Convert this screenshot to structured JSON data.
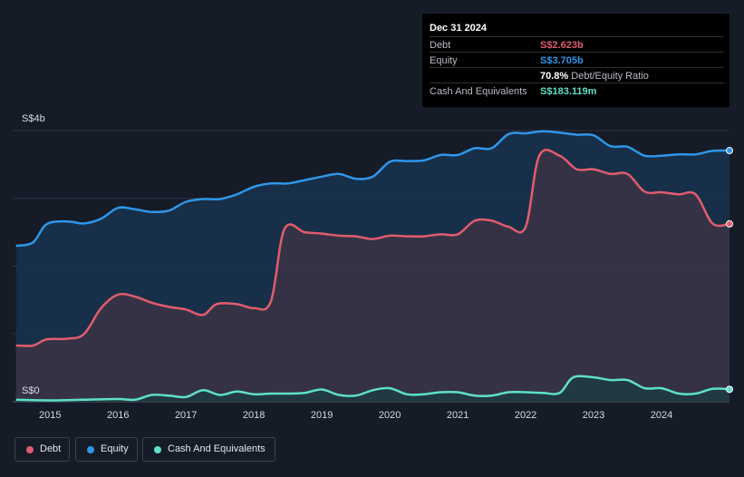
{
  "chart_data": {
    "type": "area",
    "y_ticks": [
      "S$4b",
      "S$0"
    ],
    "ylim": [
      0,
      4
    ],
    "x_ticks": [
      "2015",
      "2016",
      "2017",
      "2018",
      "2019",
      "2020",
      "2021",
      "2022",
      "2023",
      "2024"
    ],
    "xlim": [
      2014.45,
      2025.0
    ],
    "series": [
      {
        "name": "Debt",
        "color": "#e05c6e",
        "fill": "#3a3345",
        "points": [
          [
            2014.5,
            0.83
          ],
          [
            2014.75,
            0.83
          ],
          [
            2014.95,
            0.92
          ],
          [
            2015.25,
            0.93
          ],
          [
            2015.5,
            1.0
          ],
          [
            2015.75,
            1.38
          ],
          [
            2016.0,
            1.58
          ],
          [
            2016.25,
            1.55
          ],
          [
            2016.5,
            1.46
          ],
          [
            2016.75,
            1.4
          ],
          [
            2017.0,
            1.36
          ],
          [
            2017.25,
            1.28
          ],
          [
            2017.45,
            1.44
          ],
          [
            2017.75,
            1.44
          ],
          [
            2018.0,
            1.38
          ],
          [
            2018.25,
            1.48
          ],
          [
            2018.45,
            2.55
          ],
          [
            2018.75,
            2.5
          ],
          [
            2019.0,
            2.48
          ],
          [
            2019.25,
            2.45
          ],
          [
            2019.5,
            2.44
          ],
          [
            2019.75,
            2.4
          ],
          [
            2020.0,
            2.45
          ],
          [
            2020.25,
            2.44
          ],
          [
            2020.5,
            2.44
          ],
          [
            2020.75,
            2.47
          ],
          [
            2021.0,
            2.47
          ],
          [
            2021.25,
            2.67
          ],
          [
            2021.5,
            2.67
          ],
          [
            2021.75,
            2.58
          ],
          [
            2022.0,
            2.58
          ],
          [
            2022.2,
            3.63
          ],
          [
            2022.5,
            3.63
          ],
          [
            2022.75,
            3.43
          ],
          [
            2023.0,
            3.43
          ],
          [
            2023.25,
            3.36
          ],
          [
            2023.5,
            3.36
          ],
          [
            2023.75,
            3.1
          ],
          [
            2024.0,
            3.09
          ],
          [
            2024.25,
            3.06
          ],
          [
            2024.5,
            3.06
          ],
          [
            2024.75,
            2.63
          ],
          [
            2025.0,
            2.623
          ]
        ]
      },
      {
        "name": "Equity",
        "color": "#2f96e8",
        "fill": "#17324d",
        "points": [
          [
            2014.5,
            2.3
          ],
          [
            2014.75,
            2.35
          ],
          [
            2014.95,
            2.62
          ],
          [
            2015.25,
            2.66
          ],
          [
            2015.5,
            2.63
          ],
          [
            2015.75,
            2.7
          ],
          [
            2016.0,
            2.86
          ],
          [
            2016.25,
            2.84
          ],
          [
            2016.5,
            2.8
          ],
          [
            2016.75,
            2.82
          ],
          [
            2017.0,
            2.95
          ],
          [
            2017.25,
            2.99
          ],
          [
            2017.5,
            2.99
          ],
          [
            2017.75,
            3.06
          ],
          [
            2018.0,
            3.17
          ],
          [
            2018.25,
            3.22
          ],
          [
            2018.5,
            3.22
          ],
          [
            2018.75,
            3.27
          ],
          [
            2019.0,
            3.32
          ],
          [
            2019.25,
            3.36
          ],
          [
            2019.5,
            3.29
          ],
          [
            2019.75,
            3.32
          ],
          [
            2020.0,
            3.54
          ],
          [
            2020.25,
            3.55
          ],
          [
            2020.5,
            3.56
          ],
          [
            2020.75,
            3.64
          ],
          [
            2021.0,
            3.64
          ],
          [
            2021.25,
            3.74
          ],
          [
            2021.5,
            3.74
          ],
          [
            2021.75,
            3.95
          ],
          [
            2022.0,
            3.96
          ],
          [
            2022.25,
            3.99
          ],
          [
            2022.5,
            3.97
          ],
          [
            2022.75,
            3.94
          ],
          [
            2023.0,
            3.93
          ],
          [
            2023.25,
            3.77
          ],
          [
            2023.5,
            3.76
          ],
          [
            2023.75,
            3.63
          ],
          [
            2024.0,
            3.63
          ],
          [
            2024.25,
            3.65
          ],
          [
            2024.5,
            3.65
          ],
          [
            2024.75,
            3.7
          ],
          [
            2025.0,
            3.705
          ]
        ]
      },
      {
        "name": "Cash And Equivalents",
        "color": "#5fe0c8",
        "fill": "#1f3a40",
        "points": [
          [
            2014.5,
            0.03
          ],
          [
            2015.0,
            0.02
          ],
          [
            2015.5,
            0.03
          ],
          [
            2016.0,
            0.04
          ],
          [
            2016.25,
            0.03
          ],
          [
            2016.5,
            0.1
          ],
          [
            2016.75,
            0.09
          ],
          [
            2017.0,
            0.07
          ],
          [
            2017.25,
            0.17
          ],
          [
            2017.5,
            0.1
          ],
          [
            2017.75,
            0.15
          ],
          [
            2018.0,
            0.11
          ],
          [
            2018.25,
            0.12
          ],
          [
            2018.5,
            0.12
          ],
          [
            2018.75,
            0.13
          ],
          [
            2019.0,
            0.18
          ],
          [
            2019.25,
            0.1
          ],
          [
            2019.5,
            0.09
          ],
          [
            2019.75,
            0.17
          ],
          [
            2020.0,
            0.2
          ],
          [
            2020.25,
            0.11
          ],
          [
            2020.5,
            0.11
          ],
          [
            2020.75,
            0.14
          ],
          [
            2021.0,
            0.14
          ],
          [
            2021.25,
            0.09
          ],
          [
            2021.5,
            0.09
          ],
          [
            2021.75,
            0.14
          ],
          [
            2022.0,
            0.14
          ],
          [
            2022.25,
            0.13
          ],
          [
            2022.5,
            0.13
          ],
          [
            2022.7,
            0.36
          ],
          [
            2023.0,
            0.36
          ],
          [
            2023.25,
            0.32
          ],
          [
            2023.5,
            0.32
          ],
          [
            2023.75,
            0.2
          ],
          [
            2024.0,
            0.2
          ],
          [
            2024.25,
            0.12
          ],
          [
            2024.5,
            0.12
          ],
          [
            2024.75,
            0.19
          ],
          [
            2025.0,
            0.183
          ]
        ]
      }
    ]
  },
  "tooltip": {
    "date": "Dec 31 2024",
    "debt_label": "Debt",
    "debt_value": "S$2.623b",
    "debt_color": "#e05c6e",
    "equity_label": "Equity",
    "equity_value": "S$3.705b",
    "equity_color": "#2f96e8",
    "ratio_value": "70.8%",
    "ratio_label": "Debt/Equity Ratio",
    "cash_label": "Cash And Equivalents",
    "cash_value": "S$183.119m",
    "cash_color": "#5fe0c8"
  },
  "legend": [
    {
      "label": "Debt",
      "color": "#e05c6e"
    },
    {
      "label": "Equity",
      "color": "#2f96e8"
    },
    {
      "label": "Cash And Equivalents",
      "color": "#5fe0c8"
    }
  ]
}
